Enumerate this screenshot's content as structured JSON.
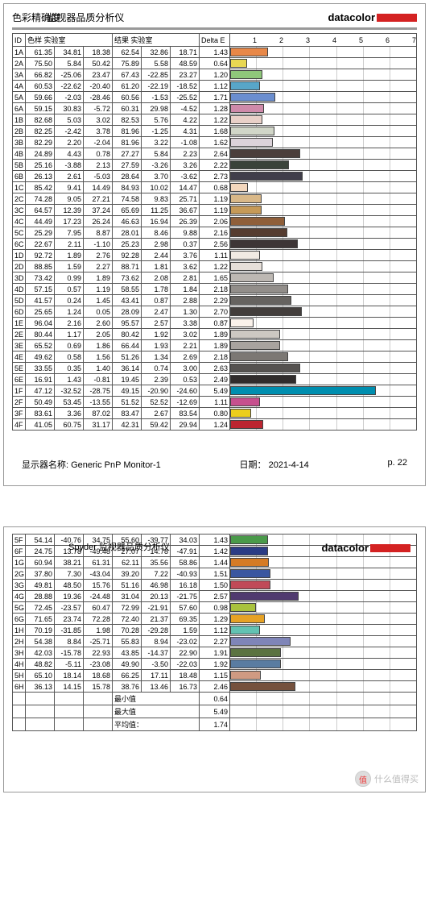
{
  "page1": {
    "title_left": "色彩精确度",
    "title_overlay": "监视器品质分析仪",
    "logo_text": "datacolor",
    "header_id": "ID",
    "header_sample": "色样 实验室",
    "header_result": "结果 实验室",
    "header_delta": "Delta E",
    "axis_max": 7,
    "rows": [
      {
        "id": "1A",
        "s": [
          61.35,
          34.81,
          18.38
        ],
        "r": [
          62.54,
          32.86,
          18.71
        ],
        "de": 1.43,
        "c": "#e88848"
      },
      {
        "id": "2A",
        "s": [
          75.5,
          5.84,
          50.42
        ],
        "r": [
          75.89,
          5.58,
          48.59
        ],
        "de": 0.64,
        "c": "#e8d752"
      },
      {
        "id": "3A",
        "s": [
          66.82,
          -25.06,
          23.47
        ],
        "r": [
          67.43,
          -22.85,
          23.27
        ],
        "de": 1.2,
        "c": "#8fc77a"
      },
      {
        "id": "4A",
        "s": [
          60.53,
          -22.62,
          -20.4
        ],
        "r": [
          61.2,
          -22.19,
          -18.52
        ],
        "de": 1.12,
        "c": "#58a6c8"
      },
      {
        "id": "5A",
        "s": [
          59.66,
          -2.03,
          -28.46
        ],
        "r": [
          60.56,
          -1.53,
          -25.52
        ],
        "de": 1.71,
        "c": "#6b8ecf"
      },
      {
        "id": "6A",
        "s": [
          59.15,
          30.83,
          -5.72
        ],
        "r": [
          60.31,
          29.98,
          -4.52
        ],
        "de": 1.28,
        "c": "#cf8aaa"
      },
      {
        "id": "1B",
        "s": [
          82.68,
          5.03,
          3.02
        ],
        "r": [
          82.53,
          5.76,
          4.22
        ],
        "de": 1.22,
        "c": "#e9d0c8"
      },
      {
        "id": "2B",
        "s": [
          82.25,
          -2.42,
          3.78
        ],
        "r": [
          81.96,
          -1.25,
          4.31
        ],
        "de": 1.68,
        "c": "#d1d6c8"
      },
      {
        "id": "3B",
        "s": [
          82.29,
          2.2,
          -2.04
        ],
        "r": [
          81.96,
          3.22,
          -1.08
        ],
        "de": 1.62,
        "c": "#dcd3da"
      },
      {
        "id": "4B",
        "s": [
          24.89,
          4.43,
          0.78
        ],
        "r": [
          27.27,
          5.84,
          2.23
        ],
        "de": 2.64,
        "c": "#4b3e3b"
      },
      {
        "id": "5B",
        "s": [
          25.16,
          -3.88,
          2.13
        ],
        "r": [
          27.59,
          -3.26,
          3.26
        ],
        "de": 2.22,
        "c": "#3a433a"
      },
      {
        "id": "6B",
        "s": [
          26.13,
          2.61,
          -5.03
        ],
        "r": [
          28.64,
          3.7,
          -3.62
        ],
        "de": 2.73,
        "c": "#403e4a"
      },
      {
        "id": "1C",
        "s": [
          85.42,
          9.41,
          14.49
        ],
        "r": [
          84.93,
          10.02,
          14.47
        ],
        "de": 0.68,
        "c": "#f3d7bd"
      },
      {
        "id": "2C",
        "s": [
          74.28,
          9.05,
          27.21
        ],
        "r": [
          74.58,
          9.83,
          25.71
        ],
        "de": 1.19,
        "c": "#d9b888"
      },
      {
        "id": "3C",
        "s": [
          64.57,
          12.39,
          37.24
        ],
        "r": [
          65.69,
          11.25,
          36.67
        ],
        "de": 1.19,
        "c": "#c69a58"
      },
      {
        "id": "4C",
        "s": [
          44.49,
          17.23,
          26.24
        ],
        "r": [
          46.63,
          16.94,
          26.39
        ],
        "de": 2.06,
        "c": "#8f5f3a"
      },
      {
        "id": "5C",
        "s": [
          25.29,
          7.95,
          8.87
        ],
        "r": [
          28.01,
          8.46,
          9.88
        ],
        "de": 2.16,
        "c": "#553c30"
      },
      {
        "id": "6C",
        "s": [
          22.67,
          2.11,
          -1.1
        ],
        "r": [
          25.23,
          2.98,
          0.37
        ],
        "de": 2.56,
        "c": "#3d3536"
      },
      {
        "id": "1D",
        "s": [
          92.72,
          1.89,
          2.76
        ],
        "r": [
          92.28,
          2.44,
          3.76
        ],
        "de": 1.11,
        "c": "#f1eae3"
      },
      {
        "id": "2D",
        "s": [
          88.85,
          1.59,
          2.27
        ],
        "r": [
          88.71,
          1.81,
          3.62
        ],
        "de": 1.22,
        "c": "#e6dfd9"
      },
      {
        "id": "3D",
        "s": [
          73.42,
          0.99,
          1.89
        ],
        "r": [
          73.62,
          2.08,
          2.81
        ],
        "de": 1.65,
        "c": "#bdb8b3"
      },
      {
        "id": "4D",
        "s": [
          57.15,
          0.57,
          1.19
        ],
        "r": [
          58.55,
          1.78,
          1.84
        ],
        "de": 2.18,
        "c": "#928e8a"
      },
      {
        "id": "5D",
        "s": [
          41.57,
          0.24,
          1.45
        ],
        "r": [
          43.41,
          0.87,
          2.88
        ],
        "de": 2.29,
        "c": "#666360"
      },
      {
        "id": "6D",
        "s": [
          25.65,
          1.24,
          0.05
        ],
        "r": [
          28.09,
          2.47,
          1.3
        ],
        "de": 2.7,
        "c": "#433e3c"
      },
      {
        "id": "1E",
        "s": [
          96.04,
          2.16,
          2.6
        ],
        "r": [
          95.57,
          2.57,
          3.38
        ],
        "de": 0.87,
        "c": "#faf2eb"
      },
      {
        "id": "2E",
        "s": [
          80.44,
          1.17,
          2.05
        ],
        "r": [
          80.42,
          1.92,
          3.02
        ],
        "de": 1.89,
        "c": "#cdc8c2"
      },
      {
        "id": "3E",
        "s": [
          65.52,
          0.69,
          1.86
        ],
        "r": [
          66.44,
          1.93,
          2.21
        ],
        "de": 1.89,
        "c": "#a8a39f"
      },
      {
        "id": "4E",
        "s": [
          49.62,
          0.58,
          1.56
        ],
        "r": [
          51.26,
          1.34,
          2.69
        ],
        "de": 2.18,
        "c": "#7c7874"
      },
      {
        "id": "5E",
        "s": [
          33.55,
          0.35,
          1.4
        ],
        "r": [
          36.14,
          0.74,
          3.0
        ],
        "de": 2.63,
        "c": "#555250"
      },
      {
        "id": "6E",
        "s": [
          16.91,
          1.43,
          -0.81
        ],
        "r": [
          19.45,
          2.39,
          0.53
        ],
        "de": 2.49,
        "c": "#302c2c"
      },
      {
        "id": "1F",
        "s": [
          47.12,
          -32.52,
          -28.75
        ],
        "r": [
          49.15,
          -20.9,
          -24.6
        ],
        "de": 5.49,
        "c": "#008eaf"
      },
      {
        "id": "2F",
        "s": [
          50.49,
          53.45,
          -13.55
        ],
        "r": [
          51.52,
          52.52,
          -12.69
        ],
        "de": 1.11,
        "c": "#c6508e"
      },
      {
        "id": "3F",
        "s": [
          83.61,
          3.36,
          87.02
        ],
        "r": [
          83.47,
          2.67,
          83.54
        ],
        "de": 0.8,
        "c": "#ecce1c"
      },
      {
        "id": "4F",
        "s": [
          41.05,
          60.75,
          31.17
        ],
        "r": [
          42.31,
          59.42,
          29.94
        ],
        "de": 1.24,
        "c": "#bb2530"
      }
    ],
    "footer_name_label": "显示器名称: Generic PnP Monitor-1",
    "footer_date": "日期：  2021-4-14",
    "footer_page": "p. 22"
  },
  "page2": {
    "title_overlay": "Spyder 监视器品质分析仪",
    "logo_text": "datacolor",
    "axis_max": 7,
    "rows": [
      {
        "id": "5F",
        "s": [
          54.14,
          -40.76,
          34.75
        ],
        "r": [
          55.6,
          -39.77,
          34.03
        ],
        "de": 1.43,
        "c": "#4a9a4a"
      },
      {
        "id": "6F",
        "row_overlay": true,
        "s": [
          24.75,
          13.78,
          -49.48
        ],
        "r": [
          27.07,
          14.78,
          -47.91
        ],
        "de": 1.42,
        "c": "#2b3c85"
      },
      {
        "id": "1G",
        "s": [
          60.94,
          38.21,
          61.31
        ],
        "r": [
          62.11,
          35.56,
          58.86
        ],
        "de": 1.44,
        "c": "#d57b25"
      },
      {
        "id": "2G",
        "s": [
          37.8,
          7.3,
          -43.04
        ],
        "r": [
          39.2,
          7.22,
          -40.93
        ],
        "de": 1.51,
        "c": "#3a56a0"
      },
      {
        "id": "3G",
        "s": [
          49.81,
          48.5,
          15.76
        ],
        "r": [
          51.16,
          46.98,
          16.18
        ],
        "de": 1.5,
        "c": "#c04a58"
      },
      {
        "id": "4G",
        "s": [
          28.88,
          19.36,
          -24.48
        ],
        "r": [
          31.04,
          20.13,
          -21.75
        ],
        "de": 2.57,
        "c": "#503a6f"
      },
      {
        "id": "5G",
        "s": [
          72.45,
          -23.57,
          60.47
        ],
        "r": [
          72.99,
          -21.91,
          57.6
        ],
        "de": 0.98,
        "c": "#a9c23d"
      },
      {
        "id": "6G",
        "s": [
          71.65,
          23.74,
          72.28
        ],
        "r": [
          72.4,
          21.37,
          69.35
        ],
        "de": 1.29,
        "c": "#e6a225"
      },
      {
        "id": "1H",
        "s": [
          70.19,
          -31.85,
          1.98
        ],
        "r": [
          70.28,
          -29.28,
          1.59
        ],
        "de": 1.12,
        "c": "#63c2b2"
      },
      {
        "id": "2H",
        "s": [
          54.38,
          8.84,
          -25.71
        ],
        "r": [
          55.83,
          8.94,
          -23.02
        ],
        "de": 2.27,
        "c": "#7f85b8"
      },
      {
        "id": "3H",
        "s": [
          42.03,
          -15.78,
          22.93
        ],
        "r": [
          43.85,
          -14.37,
          22.9
        ],
        "de": 1.91,
        "c": "#5b7340"
      },
      {
        "id": "4H",
        "s": [
          48.82,
          -5.11,
          -23.08
        ],
        "r": [
          49.9,
          -3.5,
          -22.03
        ],
        "de": 1.92,
        "c": "#5a7ca1"
      },
      {
        "id": "5H",
        "s": [
          65.1,
          18.14,
          18.68
        ],
        "r": [
          66.25,
          17.11,
          18.48
        ],
        "de": 1.15,
        "c": "#cf9a82"
      },
      {
        "id": "6H",
        "s": [
          36.13,
          14.15,
          15.78
        ],
        "r": [
          38.76,
          13.46,
          16.73
        ],
        "de": 2.46,
        "c": "#75513d"
      }
    ],
    "stats": [
      {
        "label": "最小值",
        "val": "0.64"
      },
      {
        "label": "最大值",
        "val": "5.49"
      },
      {
        "label": "平均值：",
        "val": "1.74"
      }
    ],
    "watermark": "什么值得买"
  }
}
